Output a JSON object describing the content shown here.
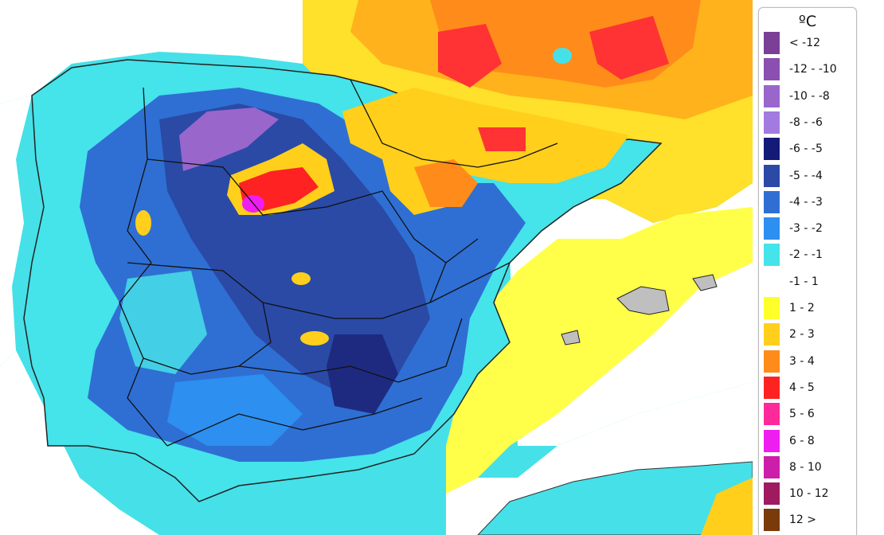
{
  "legend": {
    "title": "ºC",
    "items": [
      {
        "label": "< -12",
        "color": "#7b3f98"
      },
      {
        "label": "-12 - -10",
        "color": "#8a4fb0"
      },
      {
        "label": "-10 - -8",
        "color": "#9966cc"
      },
      {
        "label": "-8 - -6",
        "color": "#a37ae0"
      },
      {
        "label": "-6 - -5",
        "color": "#141a78"
      },
      {
        "label": "-5 - -4",
        "color": "#2a4aa6"
      },
      {
        "label": "-4 - -3",
        "color": "#2f6fd3"
      },
      {
        "label": "-3 - -2",
        "color": "#2d8ff0"
      },
      {
        "label": "-2 - -1",
        "color": "#45e3ea"
      },
      {
        "label": "-1 - 1",
        "color": "#ffffff"
      },
      {
        "label": "1 - 2",
        "color": "#ffff2a"
      },
      {
        "label": "2 - 3",
        "color": "#ffcf1c"
      },
      {
        "label": "3 - 4",
        "color": "#ff8c1a"
      },
      {
        "label": "4 - 5",
        "color": "#ff2222"
      },
      {
        "label": "5 - 6",
        "color": "#ff2a9a"
      },
      {
        "label": "6 - 8",
        "color": "#ef1ef0"
      },
      {
        "label": "8 - 10",
        "color": "#cc1ea8"
      },
      {
        "label": "10 - 12",
        "color": "#a01a60"
      },
      {
        "label": "12 >",
        "color": "#7a3a0a"
      }
    ]
  }
}
